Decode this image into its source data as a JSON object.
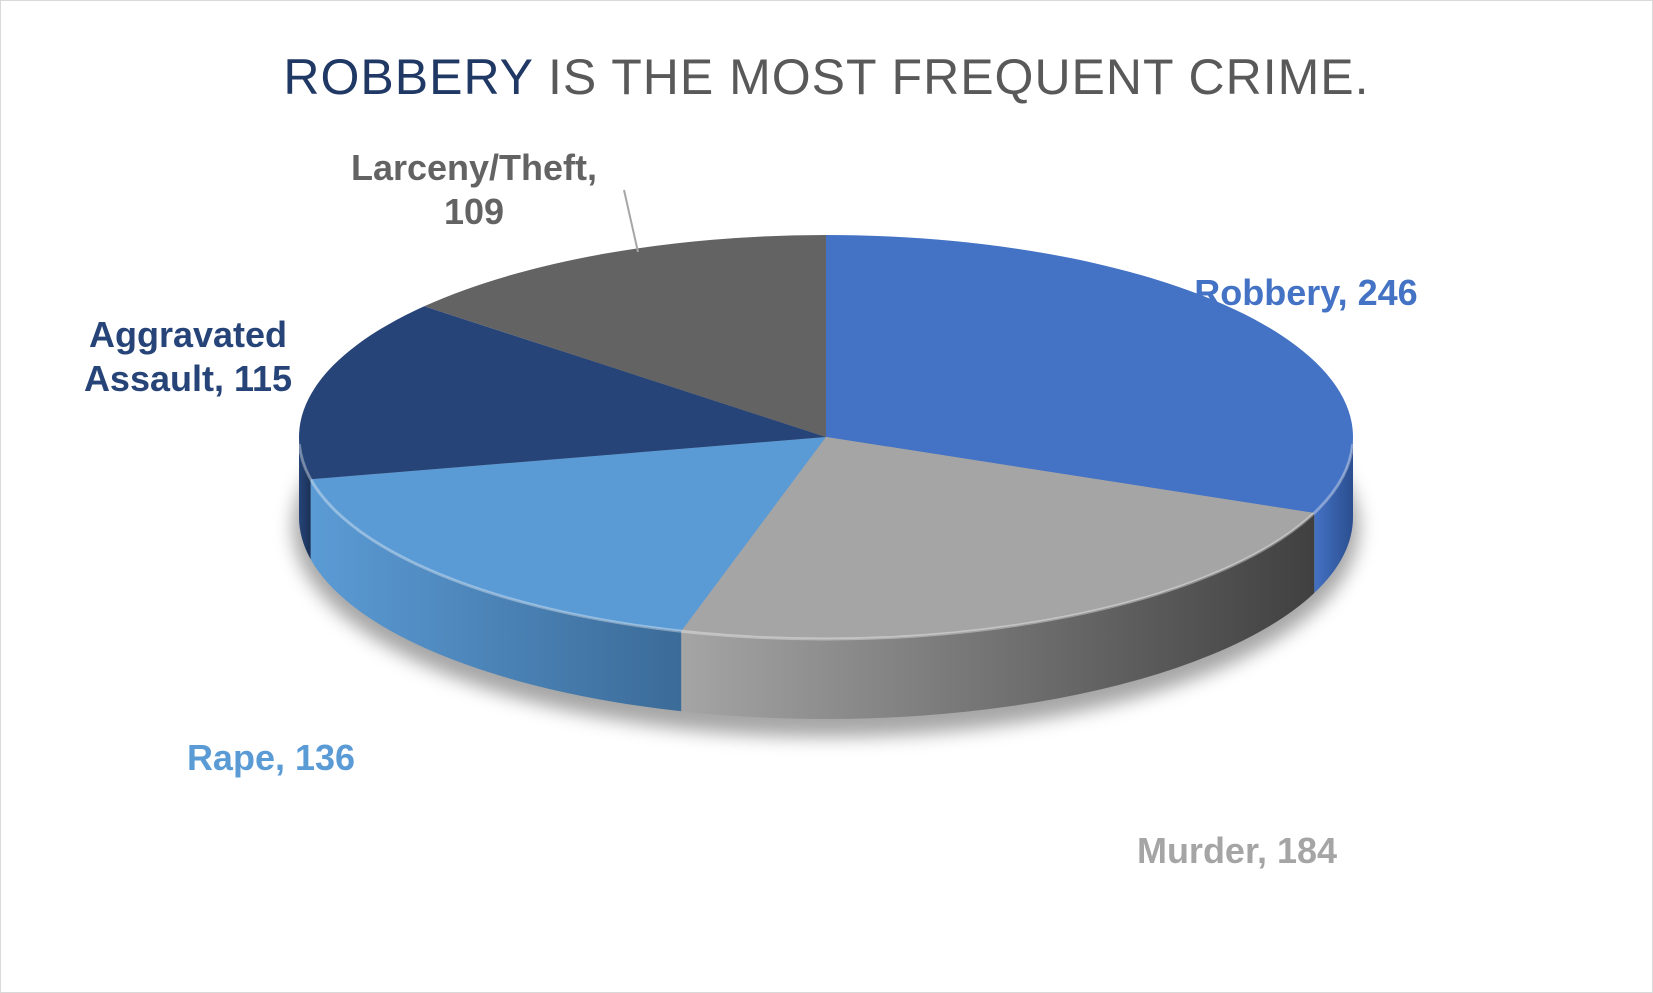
{
  "chart_data": {
    "type": "pie",
    "style": "3d",
    "title": "ROBBERY IS THE MOST FREQUENT CRIME.",
    "title_highlight": "ROBBERY",
    "title_rest": " IS THE MOST FREQUENT CRIME.",
    "title_colors": {
      "highlight": "#1f3864",
      "rest": "#595959"
    },
    "slices": [
      {
        "name": "Robbery",
        "value": 246,
        "color": "#4472c4",
        "side_dark": "#2b4e8f",
        "label_color": "#4472c4",
        "label_lines": [
          "Robbery, 246"
        ]
      },
      {
        "name": "Murder",
        "value": 184,
        "color": "#a5a5a5",
        "side_dark": "#404040",
        "label_color": "#a5a5a5",
        "label_lines": [
          "Murder, 184"
        ]
      },
      {
        "name": "Rape",
        "value": 136,
        "color": "#5b9bd5",
        "side_dark": "#3b6b98",
        "label_color": "#5b9bd5",
        "label_lines": [
          "Rape, 136"
        ]
      },
      {
        "name": "Aggravated Assault",
        "value": 115,
        "color": "#264478",
        "side_dark": "#1a3157",
        "label_color": "#264478",
        "label_lines": [
          "Aggravated",
          "Assault, 115"
        ]
      },
      {
        "name": "Larceny/Theft",
        "value": 109,
        "color": "#636363",
        "side_dark": "#3f3f3f",
        "label_color": "#636363",
        "label_lines": [
          "Larceny/Theft,",
          "109"
        ]
      }
    ],
    "data_labels": "category, value",
    "legend": "none"
  }
}
